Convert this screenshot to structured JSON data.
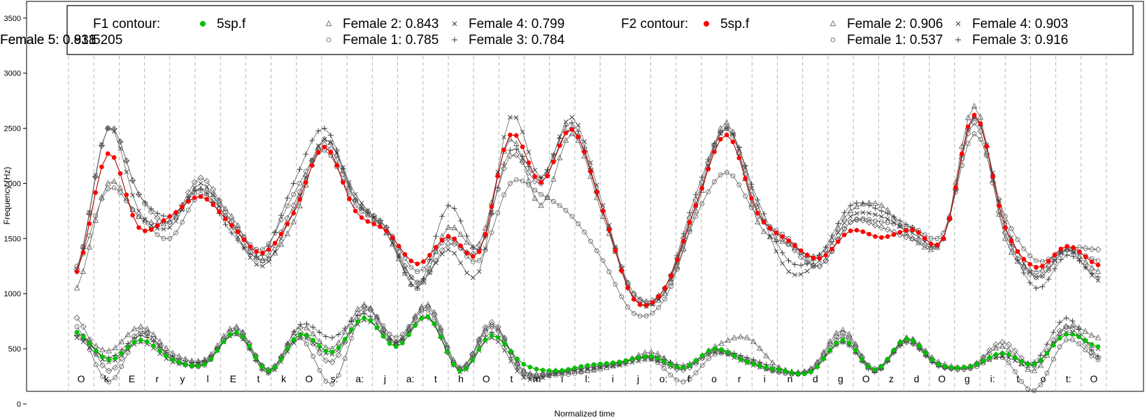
{
  "chart_data": {
    "type": "line",
    "xlabel": "Normalized time",
    "ylabel": "Frequency (Hz)",
    "ylim": [
      0,
      3600
    ],
    "yticks": [
      0,
      500,
      1000,
      1500,
      2000,
      2500,
      3000,
      3500
    ],
    "grid": "vertical dashed segment boundaries",
    "segments": [
      "O",
      "k",
      "E",
      "r",
      "y",
      "l",
      "E",
      "t",
      "k",
      "O",
      "s:",
      "a:",
      "j",
      "a:",
      "t",
      "h",
      "O",
      "t",
      "m",
      "i",
      "l:",
      "i",
      "j",
      "o:",
      "f",
      "o",
      "r",
      "i",
      "n",
      "d",
      "g",
      "O",
      "z",
      "d",
      "O",
      "g",
      "i:",
      "t",
      "o",
      "t:",
      "O"
    ],
    "legend": {
      "placement": "top",
      "f1_title": "F1 contour:",
      "f1_id": "5205",
      "f2_title": "F2 contour:",
      "f1_entries": [
        {
          "label": "5sp.f",
          "marker": "filled-circle",
          "color": "#00c000"
        },
        {
          "label": "Female 1: 0.785",
          "marker": "open-circle"
        },
        {
          "label": "Female 2: 0.843",
          "marker": "triangle"
        },
        {
          "label": "Female 3: 0.784",
          "marker": "plus"
        },
        {
          "label": "Female 4: 0.799",
          "marker": "cross"
        },
        {
          "label": "Female 5: 0.818",
          "marker": "diamond"
        }
      ],
      "f2_entries": [
        {
          "label": "5sp.f",
          "marker": "filled-circle",
          "color": "#ff0000"
        },
        {
          "label": "Female 1: 0.537",
          "marker": "open-circle"
        },
        {
          "label": "Female 2: 0.906",
          "marker": "triangle"
        },
        {
          "label": "Female 3: 0.916",
          "marker": "plus"
        },
        {
          "label": "Female 4: 0.903",
          "marker": "cross"
        },
        {
          "label": "Female 5: 0.931",
          "marker": "diamond"
        }
      ]
    },
    "series": [
      {
        "name": "5sp.f F2",
        "formant": "F2",
        "color": "#ff0000",
        "marker": "filled-circle",
        "values": [
          1200,
          2270,
          1600,
          1700,
          1880,
          1620,
          1370,
          1730,
          2330,
          1750,
          1570,
          1270,
          1520,
          1380,
          2440,
          2010,
          2490,
          1750,
          950,
          1050,
          1800,
          2440,
          1730,
          1480,
          1320,
          1570,
          1510,
          1580,
          1500,
          2620,
          1600,
          1240,
          1430,
          1260
        ]
      },
      {
        "name": "5sp.f F1",
        "formant": "F1",
        "color": "#00c000",
        "marker": "filled-circle",
        "values": [
          650,
          400,
          580,
          400,
          360,
          650,
          300,
          630,
          470,
          780,
          520,
          790,
          300,
          620,
          360,
          300,
          350,
          380,
          430,
          330,
          500,
          380,
          310,
          290,
          580,
          310,
          590,
          360,
          340,
          460,
          360,
          630,
          520
        ]
      },
      {
        "name": "Female 1",
        "formant": "F2",
        "marker": "open-circle",
        "values": [
          1250,
          1950,
          1700,
          1500,
          1900,
          1650,
          1400,
          1900,
          2300,
          1800,
          1600,
          1200,
          1500,
          1300,
          2000,
          1900,
          1700,
          1300,
          820,
          950,
          1700,
          2100,
          1700,
          1500,
          1250,
          1650,
          1650,
          1600,
          1550,
          2450,
          1700,
          1300,
          1400,
          1300
        ]
      },
      {
        "name": "Female 1",
        "formant": "F1",
        "marker": "open-circle",
        "values": [
          700,
          200,
          640,
          420,
          350,
          680,
          300,
          600,
          180,
          850,
          600,
          850,
          320,
          700,
          300,
          260,
          300,
          380,
          410,
          200,
          450,
          400,
          290,
          300,
          610,
          320,
          560,
          350,
          320,
          420,
          120,
          580,
          400
        ]
      },
      {
        "name": "Female 2",
        "formant": "F2",
        "marker": "triangle",
        "values": [
          1050,
          2000,
          1700,
          1650,
          1950,
          1700,
          1300,
          1650,
          2400,
          1850,
          1550,
          1050,
          1600,
          1450,
          2400,
          1800,
          2450,
          1700,
          1000,
          1000,
          1750,
          2550,
          1650,
          1450,
          1350,
          1750,
          1800,
          1500,
          1500,
          2700,
          1500,
          1200,
          1400,
          1200
        ]
      },
      {
        "name": "Female 2",
        "formant": "F1",
        "marker": "triangle",
        "values": [
          640,
          480,
          700,
          460,
          400,
          700,
          300,
          700,
          500,
          900,
          560,
          900,
          330,
          720,
          300,
          300,
          300,
          360,
          470,
          330,
          520,
          600,
          330,
          320,
          670,
          300,
          600,
          380,
          340,
          520,
          300,
          700,
          600
        ]
      },
      {
        "name": "Female 3",
        "formant": "F2",
        "marker": "plus",
        "values": [
          1200,
          2500,
          1900,
          1700,
          1950,
          1550,
          1350,
          2000,
          2500,
          1850,
          1600,
          1050,
          1800,
          1400,
          2300,
          2050,
          2550,
          1750,
          950,
          1050,
          1900,
          2500,
          1850,
          1300,
          1350,
          1800,
          1750,
          1600,
          1500,
          2600,
          1600,
          1050,
          1350,
          1150
        ]
      },
      {
        "name": "Female 3",
        "formant": "F1",
        "marker": "plus",
        "values": [
          620,
          420,
          620,
          430,
          390,
          640,
          280,
          720,
          600,
          820,
          560,
          780,
          300,
          650,
          260,
          280,
          330,
          370,
          440,
          350,
          490,
          420,
          320,
          290,
          560,
          290,
          560,
          340,
          340,
          460,
          380,
          780,
          430
        ]
      },
      {
        "name": "Female 4",
        "formant": "F2",
        "marker": "cross",
        "values": [
          1220,
          2500,
          1750,
          1600,
          2000,
          1600,
          1250,
          1750,
          2400,
          1900,
          1550,
          1100,
          1400,
          1200,
          2600,
          2050,
          2600,
          1800,
          960,
          1020,
          1800,
          2500,
          1800,
          1200,
          1300,
          1700,
          1700,
          1550,
          1500,
          2600,
          1650,
          1150,
          1400,
          1120
        ]
      },
      {
        "name": "Female 4",
        "formant": "F1",
        "marker": "cross",
        "values": [
          600,
          380,
          560,
          380,
          380,
          630,
          280,
          600,
          450,
          760,
          550,
          800,
          290,
          600,
          240,
          270,
          330,
          350,
          400,
          320,
          470,
          370,
          290,
          300,
          560,
          300,
          580,
          350,
          340,
          430,
          350,
          650,
          500
        ]
      },
      {
        "name": "Female 5",
        "formant": "F2",
        "marker": "diamond",
        "values": [
          1220,
          2500,
          1900,
          1650,
          2050,
          1650,
          1300,
          1800,
          2350,
          1850,
          1600,
          1100,
          1450,
          1400,
          2250,
          2000,
          2500,
          1750,
          1000,
          1050,
          1850,
          2500,
          1750,
          1450,
          1250,
          1650,
          1600,
          1500,
          1500,
          2550,
          1550,
          1150,
          1400,
          1400
        ]
      },
      {
        "name": "Female 5",
        "formant": "F1",
        "marker": "diamond",
        "values": [
          780,
          300,
          660,
          400,
          370,
          680,
          310,
          650,
          380,
          880,
          540,
          880,
          310,
          740,
          280,
          290,
          330,
          370,
          420,
          310,
          480,
          390,
          290,
          310,
          640,
          300,
          590,
          360,
          330,
          560,
          350,
          700,
          420
        ]
      }
    ]
  }
}
